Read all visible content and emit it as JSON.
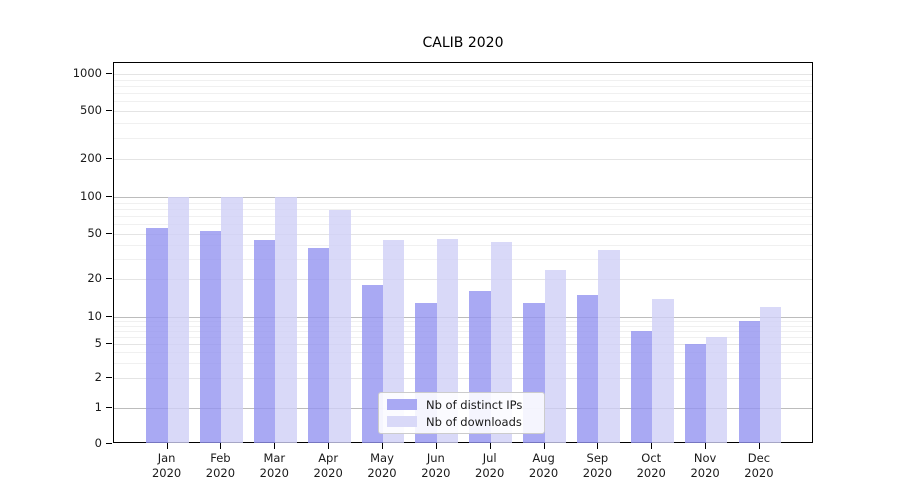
{
  "title": "CALIB 2020",
  "chart_data": {
    "type": "bar",
    "title": "CALIB 2020",
    "categories": [
      "Jan 2020",
      "Feb 2020",
      "Mar 2020",
      "Apr 2020",
      "May 2020",
      "Jun 2020",
      "Jul 2020",
      "Aug 2020",
      "Sep 2020",
      "Oct 2020",
      "Nov 2020",
      "Dec 2020"
    ],
    "series": [
      {
        "name": "Nb of distinct IPs",
        "color": "#a9a9f3",
        "values": [
          55,
          52,
          44,
          37,
          18,
          13,
          16,
          13,
          15,
          7,
          5,
          9
        ]
      },
      {
        "name": "Nb of downloads",
        "color": "#d9d9f8",
        "values": [
          100,
          100,
          100,
          78,
          44,
          45,
          42,
          24,
          36,
          14,
          6,
          12
        ]
      }
    ],
    "xlabel": "",
    "ylabel": "",
    "yticks": [
      0,
      1,
      2,
      5,
      10,
      20,
      50,
      100,
      200,
      500,
      1000
    ],
    "ylim": [
      0,
      1250
    ],
    "scale": "quasi-log (log above 1, linear 0-1)",
    "grid": true,
    "emphasized_gridlines": [
      1,
      10,
      100
    ],
    "legend_position": "lower center inside axes",
    "colors": {
      "grid_minor": "#f0f0f0",
      "grid_major": "#e4e4e4",
      "grid_emphasized": "#bcbcbc",
      "axis": "#000000",
      "background": "#ffffff"
    }
  }
}
